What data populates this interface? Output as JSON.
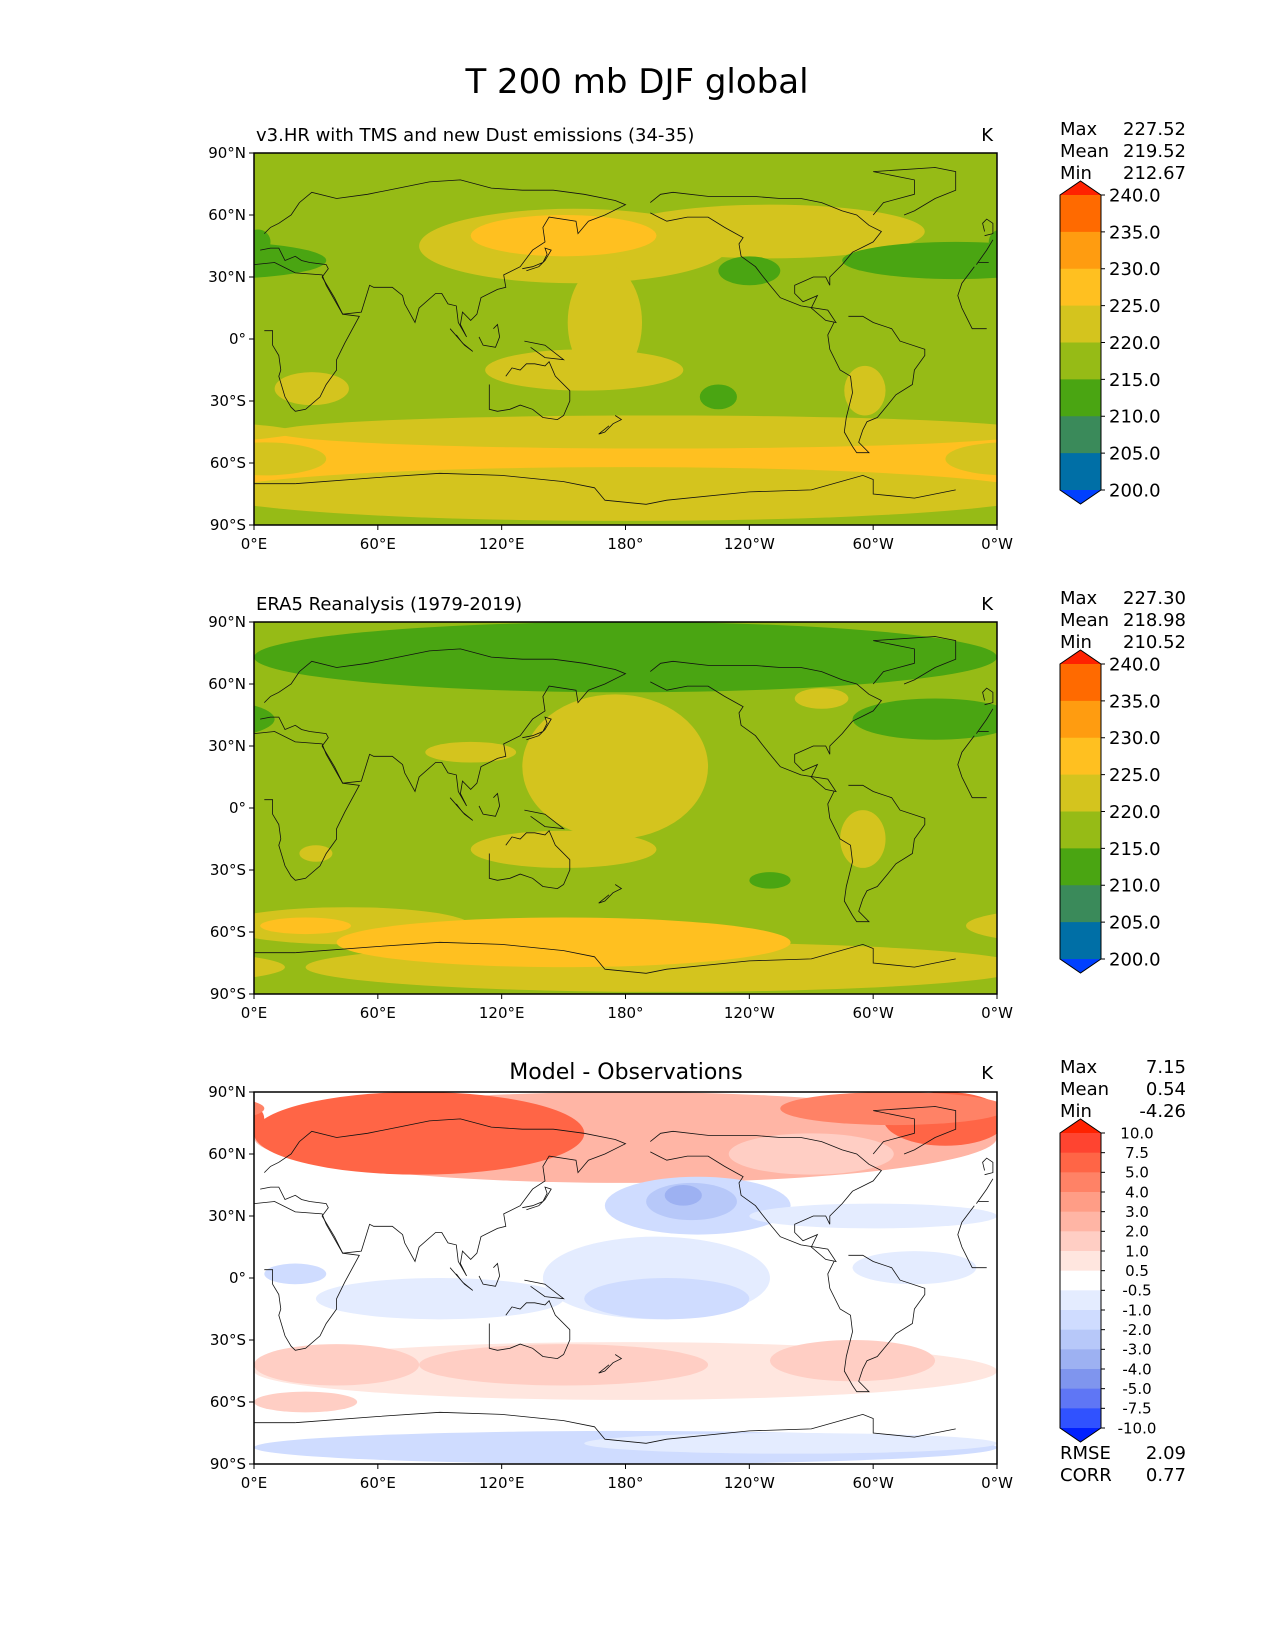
{
  "figure": {
    "title": "T 200 mb DJF global"
  },
  "chart_data": [
    {
      "type": "heatmap",
      "title": "v3.HR with TMS and new Dust emissions (34-35)",
      "units": "K",
      "stats": {
        "max": "227.52",
        "mean": "219.52",
        "min": "212.67"
      },
      "colorbar": {
        "levels": [
          "240.0",
          "235.0",
          "230.0",
          "225.0",
          "220.0",
          "215.0",
          "210.0",
          "205.0",
          "200.0"
        ],
        "colors": [
          "#ff2200",
          "#ff6a00",
          "#ff9c10",
          "#ffc020",
          "#d4c41e",
          "#96bb16",
          "#4aa512",
          "#3a8a5a",
          "#006fa6",
          "#0040ff"
        ],
        "extend": "both"
      },
      "x_ticks": [
        "0°E",
        "60°E",
        "120°E",
        "180°",
        "120°W",
        "60°W",
        "0°W"
      ],
      "y_ticks": [
        "90°N",
        "60°N",
        "30°N",
        "0°",
        "30°S",
        "60°S",
        "90°S"
      ],
      "xlim": [
        0,
        360
      ],
      "ylim": [
        -90,
        90
      ],
      "background_value": 217.5,
      "regions": [
        {
          "lon": 120,
          "lat": -58,
          "rx": 210,
          "ry": 14,
          "value": 227.5
        },
        {
          "lon": 300,
          "lat": -55,
          "rx": 60,
          "ry": 10,
          "value": 227.5
        },
        {
          "lon": 5,
          "lat": -58,
          "rx": 30,
          "ry": 8,
          "value": 222.5
        },
        {
          "lon": 180,
          "lat": -75,
          "rx": 200,
          "ry": 13,
          "value": 222.5
        },
        {
          "lon": 195,
          "lat": -45,
          "rx": 185,
          "ry": 8,
          "value": 222.5
        },
        {
          "lon": 155,
          "lat": 45,
          "rx": 75,
          "ry": 18,
          "value": 222.5
        },
        {
          "lon": 250,
          "lat": 52,
          "rx": 75,
          "ry": 13,
          "value": 222.5
        },
        {
          "lon": 170,
          "lat": 8,
          "rx": 18,
          "ry": 28,
          "value": 222.5
        },
        {
          "lon": 160,
          "lat": -15,
          "rx": 48,
          "ry": 10,
          "value": 222.5
        },
        {
          "lon": 28,
          "lat": -24,
          "rx": 18,
          "ry": 8,
          "value": 222.5
        },
        {
          "lon": 296,
          "lat": -25,
          "rx": 10,
          "ry": 12,
          "value": 222.5
        },
        {
          "lon": 150,
          "lat": 50,
          "rx": 45,
          "ry": 10,
          "value": 227.5
        },
        {
          "lon": 240,
          "lat": 33,
          "rx": 15,
          "ry": 7,
          "value": 212.5
        },
        {
          "lon": 225,
          "lat": -28,
          "rx": 9,
          "ry": 6,
          "value": 212.5
        },
        {
          "lon": 340,
          "lat": 38,
          "rx": 55,
          "ry": 9,
          "value": 212.5
        },
        {
          "lon": 2,
          "lat": 47,
          "rx": 6,
          "ry": 6,
          "value": 212.5
        }
      ]
    },
    {
      "type": "heatmap",
      "title": "ERA5 Reanalysis (1979-2019)",
      "units": "K",
      "stats": {
        "max": "227.30",
        "mean": "218.98",
        "min": "210.52"
      },
      "colorbar": {
        "levels": [
          "240.0",
          "235.0",
          "230.0",
          "225.0",
          "220.0",
          "215.0",
          "210.0",
          "205.0",
          "200.0"
        ],
        "colors": [
          "#ff2200",
          "#ff6a00",
          "#ff9c10",
          "#ffc020",
          "#d4c41e",
          "#96bb16",
          "#4aa512",
          "#3a8a5a",
          "#006fa6",
          "#0040ff"
        ],
        "extend": "both"
      },
      "x_ticks": [
        "0°E",
        "60°E",
        "120°E",
        "180°",
        "120°W",
        "60°W",
        "0°W"
      ],
      "y_ticks": [
        "90°N",
        "60°N",
        "30°N",
        "0°",
        "30°S",
        "60°S",
        "90°S"
      ],
      "xlim": [
        0,
        360
      ],
      "ylim": [
        -90,
        90
      ],
      "background_value": 217.5,
      "regions": [
        {
          "lon": 180,
          "lat": 73,
          "rx": 180,
          "ry": 17,
          "value": 212.5
        },
        {
          "lon": 330,
          "lat": 43,
          "rx": 40,
          "ry": 10,
          "value": 212.5
        },
        {
          "lon": 250,
          "lat": -35,
          "rx": 10,
          "ry": 4,
          "value": 212.5
        },
        {
          "lon": 175,
          "lat": 20,
          "rx": 45,
          "ry": 35,
          "value": 222.5
        },
        {
          "lon": 150,
          "lat": -20,
          "rx": 45,
          "ry": 9,
          "value": 222.5
        },
        {
          "lon": 45,
          "lat": -57,
          "rx": 60,
          "ry": 9,
          "value": 222.5
        },
        {
          "lon": 200,
          "lat": -77,
          "rx": 175,
          "ry": 12,
          "value": 222.5
        },
        {
          "lon": 295,
          "lat": -15,
          "rx": 11,
          "ry": 14,
          "value": 222.5
        },
        {
          "lon": 275,
          "lat": 53,
          "rx": 13,
          "ry": 5,
          "value": 222.5
        },
        {
          "lon": 105,
          "lat": 27,
          "rx": 22,
          "ry": 5,
          "value": 222.5
        },
        {
          "lon": 30,
          "lat": -22,
          "rx": 8,
          "ry": 4,
          "value": 222.5
        },
        {
          "lon": 150,
          "lat": -65,
          "rx": 110,
          "ry": 12,
          "value": 227.5
        },
        {
          "lon": 25,
          "lat": -57,
          "rx": 22,
          "ry": 4,
          "value": 227.5
        }
      ]
    },
    {
      "type": "heatmap",
      "title": "Model - Observations",
      "units": "K",
      "stats": {
        "max": "7.15",
        "mean": "0.54",
        "min": "-4.26"
      },
      "rmse": "2.09",
      "corr": "0.77",
      "colorbar": {
        "levels": [
          "10.0",
          "7.5",
          "5.0",
          "4.0",
          "3.0",
          "2.0",
          "1.0",
          "0.5",
          "-0.5",
          "-1.0",
          "-2.0",
          "-3.0",
          "-4.0",
          "-5.0",
          "-7.5",
          "-10.0"
        ],
        "colors": [
          "#ff2200",
          "#ff4430",
          "#ff6546",
          "#ff8266",
          "#ff9d86",
          "#ffb5a5",
          "#ffcec4",
          "#ffe6df",
          "#ffffff",
          "#e4ecff",
          "#cfdcff",
          "#b7c8f9",
          "#9db1f2",
          "#7f95ee",
          "#5f76f5",
          "#3052ff",
          "#0020ff"
        ],
        "extend": "both"
      },
      "x_ticks": [
        "0°E",
        "60°E",
        "120°E",
        "180°",
        "120°W",
        "60°W",
        "0°W"
      ],
      "y_ticks": [
        "90°N",
        "60°N",
        "30°N",
        "0°",
        "30°S",
        "60°S",
        "90°S"
      ],
      "xlim": [
        0,
        360
      ],
      "ylim": [
        -90,
        90
      ],
      "background_value": 0,
      "regions": [
        {
          "lon": 180,
          "lat": 68,
          "rx": 180,
          "ry": 22,
          "value": 2.5
        },
        {
          "lon": 80,
          "lat": 70,
          "rx": 80,
          "ry": 20,
          "value": 6
        },
        {
          "lon": 335,
          "lat": 77,
          "rx": 30,
          "ry": 13,
          "value": 6
        },
        {
          "lon": 310,
          "lat": 82,
          "rx": 55,
          "ry": 8,
          "value": 4.5
        },
        {
          "lon": 270,
          "lat": 60,
          "rx": 40,
          "ry": 10,
          "value": 1.5
        },
        {
          "lon": 215,
          "lat": 35,
          "rx": 45,
          "ry": 14,
          "value": -1.5
        },
        {
          "lon": 212,
          "lat": 37,
          "rx": 22,
          "ry": 9,
          "value": -2.5
        },
        {
          "lon": 208,
          "lat": 40,
          "rx": 9,
          "ry": 5,
          "value": -3.5
        },
        {
          "lon": 300,
          "lat": 30,
          "rx": 60,
          "ry": 6,
          "value": -0.75
        },
        {
          "lon": 195,
          "lat": 0,
          "rx": 55,
          "ry": 20,
          "value": -0.75
        },
        {
          "lon": 200,
          "lat": -10,
          "rx": 40,
          "ry": 10,
          "value": -1.5
        },
        {
          "lon": 20,
          "lat": 2,
          "rx": 15,
          "ry": 5,
          "value": -1.5
        },
        {
          "lon": 320,
          "lat": 5,
          "rx": 30,
          "ry": 8,
          "value": -0.75
        },
        {
          "lon": 90,
          "lat": -10,
          "rx": 60,
          "ry": 10,
          "value": -0.75
        },
        {
          "lon": 180,
          "lat": -45,
          "rx": 180,
          "ry": 14,
          "value": 0.75
        },
        {
          "lon": 40,
          "lat": -42,
          "rx": 40,
          "ry": 10,
          "value": 1.5
        },
        {
          "lon": 150,
          "lat": -42,
          "rx": 70,
          "ry": 10,
          "value": 1.5
        },
        {
          "lon": 290,
          "lat": -40,
          "rx": 40,
          "ry": 10,
          "value": 1.5
        },
        {
          "lon": 25,
          "lat": -60,
          "rx": 25,
          "ry": 5,
          "value": 1.5
        },
        {
          "lon": 180,
          "lat": -82,
          "rx": 180,
          "ry": 8,
          "value": -1.5
        },
        {
          "lon": 260,
          "lat": -80,
          "rx": 100,
          "ry": 5,
          "value": -0.75
        }
      ]
    }
  ],
  "labels": {
    "max": "Max",
    "mean": "Mean",
    "min": "Min",
    "rmse": "RMSE",
    "corr": "CORR"
  }
}
